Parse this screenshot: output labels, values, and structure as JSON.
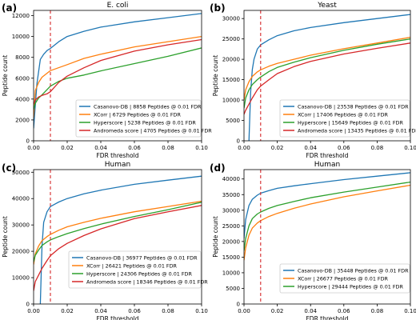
{
  "line_colors": {
    "blue": "#1f77b4",
    "orange": "#ff7f0e",
    "green": "#2ca02c",
    "red": "#d62728"
  },
  "threshold_line": {
    "value": 0.01,
    "color": "#d62728",
    "style": "dashed"
  },
  "chart_data": [
    {
      "panel": "(a)",
      "title": "E. coli",
      "type": "line",
      "xlabel": "FDR threshold",
      "ylabel": "Peptide count",
      "xlim": [
        0,
        0.1
      ],
      "ylim": [
        0,
        12500
      ],
      "xticks": [
        "0.00",
        "0.02",
        "0.04",
        "0.06",
        "0.08",
        "0.10"
      ],
      "yticks": [
        "0",
        "2000",
        "4000",
        "6000",
        "8000",
        "10000",
        "12000"
      ],
      "legend_position": "lower-right",
      "series": [
        {
          "name": "Casanovo-DB | 8858 Peptides @ 0.01 FDR",
          "color": "#1f77b4",
          "x": [
            0.0,
            0.002,
            0.004,
            0.006,
            0.008,
            0.01,
            0.015,
            0.02,
            0.03,
            0.04,
            0.06,
            0.08,
            0.1
          ],
          "y": [
            1200,
            5500,
            7800,
            8300,
            8650,
            8858,
            9500,
            10000,
            10500,
            10900,
            11400,
            11800,
            12200
          ]
        },
        {
          "name": "XCorr | 6729 Peptides @ 0.01 FDR",
          "color": "#ff7f0e",
          "x": [
            0.0,
            0.001,
            0.003,
            0.005,
            0.01,
            0.02,
            0.03,
            0.04,
            0.06,
            0.08,
            0.1
          ],
          "y": [
            2200,
            4800,
            5600,
            6100,
            6729,
            7300,
            7900,
            8300,
            9000,
            9500,
            10000
          ]
        },
        {
          "name": "Hyperscore | 5238 Peptides @ 0.01 FDR",
          "color": "#2ca02c",
          "x": [
            0.0,
            0.001,
            0.003,
            0.005,
            0.008,
            0.01,
            0.015,
            0.02,
            0.03,
            0.04,
            0.06,
            0.08,
            0.1
          ],
          "y": [
            3000,
            3600,
            4100,
            4400,
            4900,
            5238,
            5700,
            6000,
            6300,
            6700,
            7400,
            8100,
            8900
          ]
        },
        {
          "name": "Andromeda score | 4705 Peptides @ 0.01 FDR",
          "color": "#d62728",
          "x": [
            0.0,
            0.001,
            0.003,
            0.005,
            0.008,
            0.01,
            0.015,
            0.02,
            0.03,
            0.04,
            0.06,
            0.08,
            0.1
          ],
          "y": [
            3500,
            3900,
            4200,
            4350,
            4500,
            4705,
            5600,
            6200,
            7000,
            7700,
            8600,
            9200,
            9700
          ]
        }
      ]
    },
    {
      "panel": "(b)",
      "title": "Yeast",
      "type": "line",
      "xlabel": "FDR threshold",
      "ylabel": "Peptide count",
      "xlim": [
        0,
        0.1
      ],
      "ylim": [
        0,
        32000
      ],
      "xticks": [
        "0.00",
        "0.02",
        "0.04",
        "0.06",
        "0.08",
        "0.10"
      ],
      "yticks": [
        "0",
        "5000",
        "10000",
        "15000",
        "20000",
        "25000",
        "30000"
      ],
      "legend_position": "lower-right",
      "series": [
        {
          "name": "Casanovo-DB | 23538 Peptides @ 0.01 FDR",
          "color": "#1f77b4",
          "x": [
            0.003,
            0.004,
            0.005,
            0.006,
            0.008,
            0.01,
            0.015,
            0.02,
            0.03,
            0.04,
            0.06,
            0.08,
            0.1
          ],
          "y": [
            0,
            12000,
            17500,
            20000,
            22500,
            23538,
            24800,
            25800,
            27000,
            27800,
            29000,
            30000,
            31000
          ]
        },
        {
          "name": "XCorr | 17406 Peptides @ 0.01 FDR",
          "color": "#ff7f0e",
          "x": [
            0.0,
            0.001,
            0.003,
            0.005,
            0.008,
            0.01,
            0.015,
            0.02,
            0.03,
            0.04,
            0.06,
            0.08,
            0.1
          ],
          "y": [
            10000,
            12500,
            14500,
            15800,
            16900,
            17406,
            18300,
            19000,
            20000,
            21000,
            22600,
            24000,
            25400
          ]
        },
        {
          "name": "Hyperscore | 15649 Peptides @ 0.01 FDR",
          "color": "#2ca02c",
          "x": [
            0.0,
            0.001,
            0.003,
            0.005,
            0.008,
            0.01,
            0.015,
            0.02,
            0.03,
            0.04,
            0.06,
            0.08,
            0.1
          ],
          "y": [
            8000,
            10500,
            12500,
            13800,
            15000,
            15649,
            17000,
            18000,
            19300,
            20400,
            22200,
            23700,
            25000
          ]
        },
        {
          "name": "Andromeda score | 13435 Peptides @ 0.01 FDR",
          "color": "#d62728",
          "x": [
            0.0,
            0.001,
            0.003,
            0.005,
            0.008,
            0.01,
            0.015,
            0.02,
            0.03,
            0.04,
            0.06,
            0.08,
            0.1
          ],
          "y": [
            6500,
            7500,
            9000,
            10500,
            12500,
            13435,
            15000,
            16500,
            18200,
            19500,
            21300,
            22700,
            24000
          ]
        }
      ]
    },
    {
      "panel": "(c)",
      "title": "Human",
      "type": "line",
      "xlabel": "FDR threshold",
      "ylabel": "Peptide count",
      "xlim": [
        0,
        0.1
      ],
      "ylim": [
        0,
        51000
      ],
      "xticks": [
        "0.00",
        "0.02",
        "0.04",
        "0.06",
        "0.08",
        "0.10"
      ],
      "yticks": [
        "0",
        "10000",
        "20000",
        "30000",
        "40000",
        "50000"
      ],
      "legend_position": "lower-right",
      "series": [
        {
          "name": "Casanovo-DB | 36977 Peptides @ 0.01 FDR",
          "color": "#1f77b4",
          "x": [
            0.004,
            0.005,
            0.006,
            0.008,
            0.01,
            0.015,
            0.02,
            0.03,
            0.04,
            0.06,
            0.08,
            0.1
          ],
          "y": [
            0,
            22000,
            31000,
            35000,
            36977,
            38700,
            40000,
            41800,
            43200,
            45400,
            47000,
            48500
          ]
        },
        {
          "name": "XCorr | 26421 Peptides @ 0.01 FDR",
          "color": "#ff7f0e",
          "x": [
            0.0,
            0.001,
            0.003,
            0.005,
            0.008,
            0.01,
            0.015,
            0.02,
            0.03,
            0.04,
            0.06,
            0.08,
            0.1
          ],
          "y": [
            15000,
            19000,
            22000,
            24000,
            25600,
            26421,
            28000,
            29300,
            31000,
            32500,
            35000,
            37000,
            39000
          ]
        },
        {
          "name": "Hyperscore | 24306 Peptides @ 0.01 FDR",
          "color": "#2ca02c",
          "x": [
            0.0,
            0.001,
            0.003,
            0.005,
            0.008,
            0.01,
            0.015,
            0.02,
            0.03,
            0.04,
            0.06,
            0.08,
            0.1
          ],
          "y": [
            16000,
            18500,
            20500,
            22200,
            23600,
            24306,
            25600,
            26700,
            28600,
            30300,
            33200,
            35800,
            38600
          ]
        },
        {
          "name": "Andromeda score | 18346 Peptides @ 0.01 FDR",
          "color": "#d62728",
          "x": [
            0.0,
            0.001,
            0.003,
            0.005,
            0.008,
            0.01,
            0.015,
            0.02,
            0.03,
            0.04,
            0.06,
            0.08,
            0.1
          ],
          "y": [
            5000,
            8500,
            11000,
            13500,
            16500,
            18346,
            21000,
            23000,
            26000,
            28500,
            32400,
            35000,
            37400
          ]
        }
      ]
    },
    {
      "panel": "(d)",
      "title": "Human",
      "type": "line",
      "xlabel": "FDR threshold",
      "ylabel": "Peptide count",
      "xlim": [
        0,
        0.1
      ],
      "ylim": [
        0,
        43000
      ],
      "xticks": [
        "0.00",
        "0.02",
        "0.04",
        "0.06",
        "0.08",
        "0.10"
      ],
      "yticks": [
        "0",
        "5000",
        "10000",
        "15000",
        "20000",
        "25000",
        "30000",
        "35000",
        "40000"
      ],
      "legend_position": "lower-right",
      "series": [
        {
          "name": "Casanovo-DB | 35448 Peptides @ 0.01 FDR",
          "color": "#1f77b4",
          "x": [
            0.0,
            0.001,
            0.003,
            0.005,
            0.008,
            0.01,
            0.015,
            0.02,
            0.03,
            0.04,
            0.06,
            0.08,
            0.1
          ],
          "y": [
            21000,
            27000,
            31500,
            33500,
            34800,
            35448,
            36300,
            37000,
            37800,
            38500,
            39800,
            40900,
            42000
          ]
        },
        {
          "name": "XCorr | 26677 Peptides @ 0.01 FDR",
          "color": "#ff7f0e",
          "x": [
            0.0,
            0.001,
            0.003,
            0.005,
            0.008,
            0.01,
            0.015,
            0.02,
            0.03,
            0.04,
            0.06,
            0.08,
            0.1
          ],
          "y": [
            14000,
            18000,
            22000,
            24300,
            25900,
            26677,
            28000,
            29000,
            30600,
            32000,
            34300,
            36200,
            38000
          ]
        },
        {
          "name": "Hyperscore | 29444 Peptides @ 0.01 FDR",
          "color": "#2ca02c",
          "x": [
            0.0,
            0.001,
            0.003,
            0.005,
            0.008,
            0.01,
            0.015,
            0.02,
            0.03,
            0.04,
            0.06,
            0.08,
            0.1
          ],
          "y": [
            17000,
            21000,
            25000,
            27300,
            28800,
            29444,
            30600,
            31500,
            32800,
            34000,
            35800,
            37400,
            39000
          ]
        }
      ]
    }
  ]
}
